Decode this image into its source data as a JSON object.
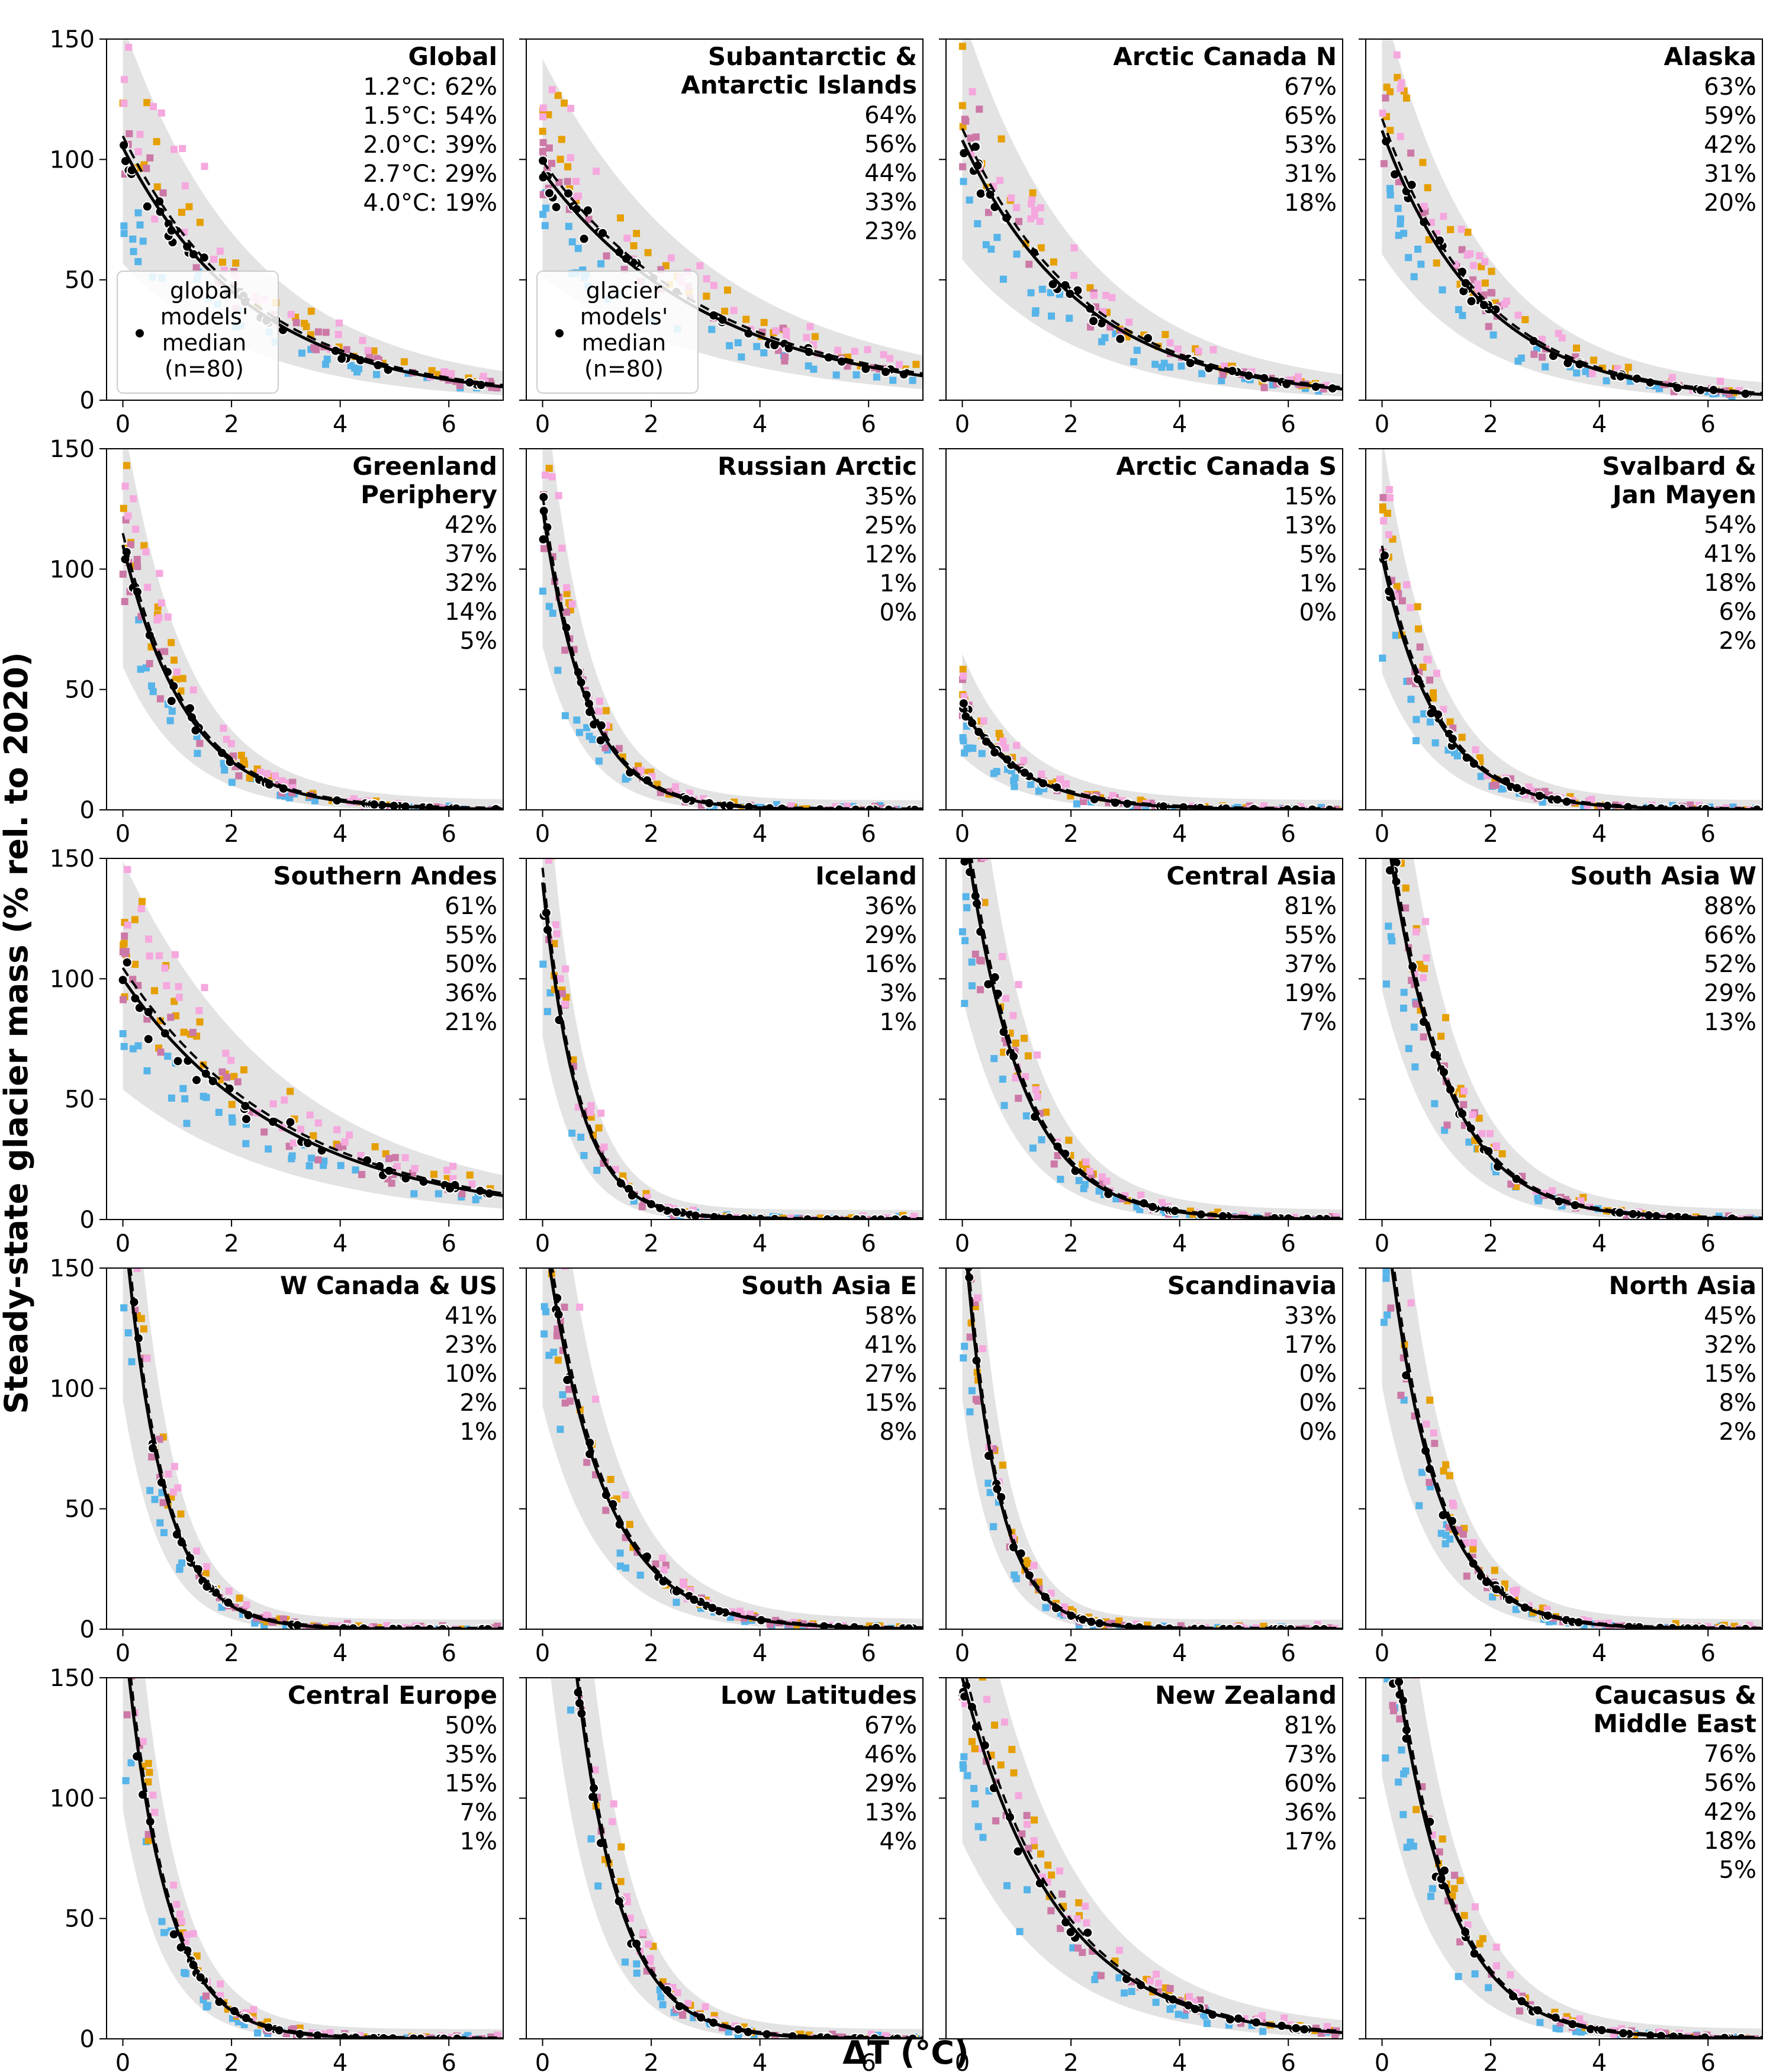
{
  "figure": {
    "ylabel": "Steady-state glacier mass (% rel. to 2020)",
    "xlabel": "ΔT (°C)"
  },
  "colors": {
    "model_a": "#56b4e9",
    "model_b": "#e69f00",
    "model_c": "#cc79a7",
    "model_d": "#f5a8de",
    "median_points": "#000000",
    "band": "#d9d9d9"
  },
  "legends": [
    {
      "panel": 0,
      "lines": [
        "global",
        "models'",
        "median",
        "(n=80)"
      ]
    },
    {
      "panel": 1,
      "lines": [
        "glacier",
        "models'",
        "median",
        "(n=80)"
      ]
    }
  ],
  "warming_levels": [
    "1.2°C",
    "1.5°C",
    "2.0°C",
    "2.7°C",
    "4.0°C"
  ],
  "chart_data": [
    {
      "type": "scatter",
      "title": [
        "Global"
      ],
      "pct": [
        "62%",
        "54%",
        "39%",
        "29%",
        "19%"
      ],
      "shape": "global",
      "xlim": [
        -0.3,
        7.0
      ],
      "ylim": [
        0,
        150
      ],
      "xticks": [
        0,
        2,
        4,
        6
      ],
      "yticks": [
        0,
        50,
        100,
        150
      ]
    },
    {
      "type": "scatter",
      "title": [
        "Subantarctic &",
        "Antarctic Islands"
      ],
      "pct": [
        "64%",
        "56%",
        "44%",
        "33%",
        "23%"
      ],
      "shape": "sub",
      "xlim": [
        -0.3,
        7.0
      ],
      "ylim": [
        0,
        150
      ],
      "xticks": [
        0,
        2,
        4,
        6
      ],
      "yticks": [
        0,
        50,
        100,
        150
      ]
    },
    {
      "type": "scatter",
      "title": [
        "Arctic Canada N"
      ],
      "pct": [
        "67%",
        "65%",
        "53%",
        "31%",
        "18%"
      ],
      "shape": "acn",
      "xlim": [
        -0.3,
        7.0
      ],
      "ylim": [
        0,
        150
      ],
      "xticks": [
        0,
        2,
        4,
        6
      ],
      "yticks": [
        0,
        50,
        100,
        150
      ]
    },
    {
      "type": "scatter",
      "title": [
        "Alaska"
      ],
      "pct": [
        "63%",
        "59%",
        "42%",
        "31%",
        "20%"
      ],
      "shape": "alaska",
      "xlim": [
        -0.3,
        7.0
      ],
      "ylim": [
        0,
        150
      ],
      "xticks": [
        0,
        2,
        4,
        6
      ],
      "yticks": [
        0,
        50,
        100,
        150
      ]
    },
    {
      "type": "scatter",
      "title": [
        "Greenland",
        "Periphery"
      ],
      "pct": [
        "42%",
        "37%",
        "32%",
        "14%",
        "5%"
      ],
      "shape": "green",
      "xlim": [
        -0.3,
        7.0
      ],
      "ylim": [
        0,
        150
      ],
      "xticks": [
        0,
        2,
        4,
        6
      ],
      "yticks": [
        0,
        50,
        100,
        150
      ]
    },
    {
      "type": "scatter",
      "title": [
        "Russian Arctic"
      ],
      "pct": [
        "35%",
        "25%",
        "12%",
        "1%",
        "0%"
      ],
      "shape": "russ",
      "xlim": [
        -0.3,
        7.0
      ],
      "ylim": [
        0,
        150
      ],
      "xticks": [
        0,
        2,
        4,
        6
      ],
      "yticks": [
        0,
        50,
        100,
        150
      ]
    },
    {
      "type": "scatter",
      "title": [
        "Arctic Canada S"
      ],
      "pct": [
        "15%",
        "13%",
        "5%",
        "1%",
        "0%"
      ],
      "shape": "acs",
      "xlim": [
        -0.3,
        7.0
      ],
      "ylim": [
        0,
        150
      ],
      "xticks": [
        0,
        2,
        4,
        6
      ],
      "yticks": [
        0,
        50,
        100,
        150
      ]
    },
    {
      "type": "scatter",
      "title": [
        "Svalbard &",
        "Jan Mayen"
      ],
      "pct": [
        "54%",
        "41%",
        "18%",
        "6%",
        "2%"
      ],
      "shape": "sval",
      "xlim": [
        -0.3,
        7.0
      ],
      "ylim": [
        0,
        150
      ],
      "xticks": [
        0,
        2,
        4,
        6
      ],
      "yticks": [
        0,
        50,
        100,
        150
      ]
    },
    {
      "type": "scatter",
      "title": [
        "Southern Andes"
      ],
      "pct": [
        "61%",
        "55%",
        "50%",
        "36%",
        "21%"
      ],
      "shape": "andes",
      "xlim": [
        -0.3,
        7.0
      ],
      "ylim": [
        0,
        150
      ],
      "xticks": [
        0,
        2,
        4,
        6
      ],
      "yticks": [
        0,
        50,
        100,
        150
      ]
    },
    {
      "type": "scatter",
      "title": [
        "Iceland"
      ],
      "pct": [
        "36%",
        "29%",
        "16%",
        "3%",
        "1%"
      ],
      "shape": "ice",
      "xlim": [
        -0.3,
        7.0
      ],
      "ylim": [
        0,
        150
      ],
      "xticks": [
        0,
        2,
        4,
        6
      ],
      "yticks": [
        0,
        50,
        100,
        150
      ]
    },
    {
      "type": "scatter",
      "title": [
        "Central Asia"
      ],
      "pct": [
        "81%",
        "55%",
        "37%",
        "19%",
        "7%"
      ],
      "shape": "casia",
      "xlim": [
        -0.3,
        7.0
      ],
      "ylim": [
        0,
        150
      ],
      "xticks": [
        0,
        2,
        4,
        6
      ],
      "yticks": [
        0,
        50,
        100,
        150
      ]
    },
    {
      "type": "scatter",
      "title": [
        "South Asia W"
      ],
      "pct": [
        "88%",
        "66%",
        "52%",
        "29%",
        "13%"
      ],
      "shape": "saw",
      "xlim": [
        -0.3,
        7.0
      ],
      "ylim": [
        0,
        150
      ],
      "xticks": [
        0,
        2,
        4,
        6
      ],
      "yticks": [
        0,
        50,
        100,
        150
      ]
    },
    {
      "type": "scatter",
      "title": [
        "W Canada & US"
      ],
      "pct": [
        "41%",
        "23%",
        "10%",
        "2%",
        "1%"
      ],
      "shape": "wcan",
      "xlim": [
        -0.3,
        7.0
      ],
      "ylim": [
        0,
        150
      ],
      "xticks": [
        0,
        2,
        4,
        6
      ],
      "yticks": [
        0,
        50,
        100,
        150
      ]
    },
    {
      "type": "scatter",
      "title": [
        "South Asia E"
      ],
      "pct": [
        "58%",
        "41%",
        "27%",
        "15%",
        "8%"
      ],
      "shape": "sae",
      "xlim": [
        -0.3,
        7.0
      ],
      "ylim": [
        0,
        150
      ],
      "xticks": [
        0,
        2,
        4,
        6
      ],
      "yticks": [
        0,
        50,
        100,
        150
      ]
    },
    {
      "type": "scatter",
      "title": [
        "Scandinavia"
      ],
      "pct": [
        "33%",
        "17%",
        "0%",
        "0%",
        "0%"
      ],
      "shape": "scan",
      "xlim": [
        -0.3,
        7.0
      ],
      "ylim": [
        0,
        150
      ],
      "xticks": [
        0,
        2,
        4,
        6
      ],
      "yticks": [
        0,
        50,
        100,
        150
      ]
    },
    {
      "type": "scatter",
      "title": [
        "North Asia"
      ],
      "pct": [
        "45%",
        "32%",
        "15%",
        "8%",
        "2%"
      ],
      "shape": "nasia",
      "xlim": [
        -0.3,
        7.0
      ],
      "ylim": [
        0,
        150
      ],
      "xticks": [
        0,
        2,
        4,
        6
      ],
      "yticks": [
        0,
        50,
        100,
        150
      ]
    },
    {
      "type": "scatter",
      "title": [
        "Central Europe"
      ],
      "pct": [
        "50%",
        "35%",
        "15%",
        "7%",
        "1%"
      ],
      "shape": "ceu",
      "xlim": [
        -0.3,
        7.0
      ],
      "ylim": [
        0,
        150
      ],
      "xticks": [
        0,
        2,
        4,
        6
      ],
      "yticks": [
        0,
        50,
        100,
        150
      ]
    },
    {
      "type": "scatter",
      "title": [
        "Low Latitudes"
      ],
      "pct": [
        "67%",
        "46%",
        "29%",
        "13%",
        "4%"
      ],
      "shape": "lowlat",
      "xlim": [
        -0.3,
        7.0
      ],
      "ylim": [
        0,
        150
      ],
      "xticks": [
        0,
        2,
        4,
        6
      ],
      "yticks": [
        0,
        50,
        100,
        150
      ]
    },
    {
      "type": "scatter",
      "title": [
        "New Zealand"
      ],
      "pct": [
        "81%",
        "73%",
        "60%",
        "36%",
        "17%"
      ],
      "shape": "nz",
      "xlim": [
        -0.3,
        7.0
      ],
      "ylim": [
        0,
        150
      ],
      "xticks": [
        0,
        2,
        4,
        6
      ],
      "yticks": [
        0,
        50,
        100,
        150
      ]
    },
    {
      "type": "scatter",
      "title": [
        "Caucasus &",
        "Middle East"
      ],
      "pct": [
        "76%",
        "56%",
        "42%",
        "18%",
        "5%"
      ],
      "shape": "cauc",
      "xlim": [
        -0.3,
        7.0
      ],
      "ylim": [
        0,
        150
      ],
      "xticks": [
        0,
        2,
        4,
        6
      ],
      "yticks": [
        0,
        50,
        100,
        150
      ]
    }
  ]
}
